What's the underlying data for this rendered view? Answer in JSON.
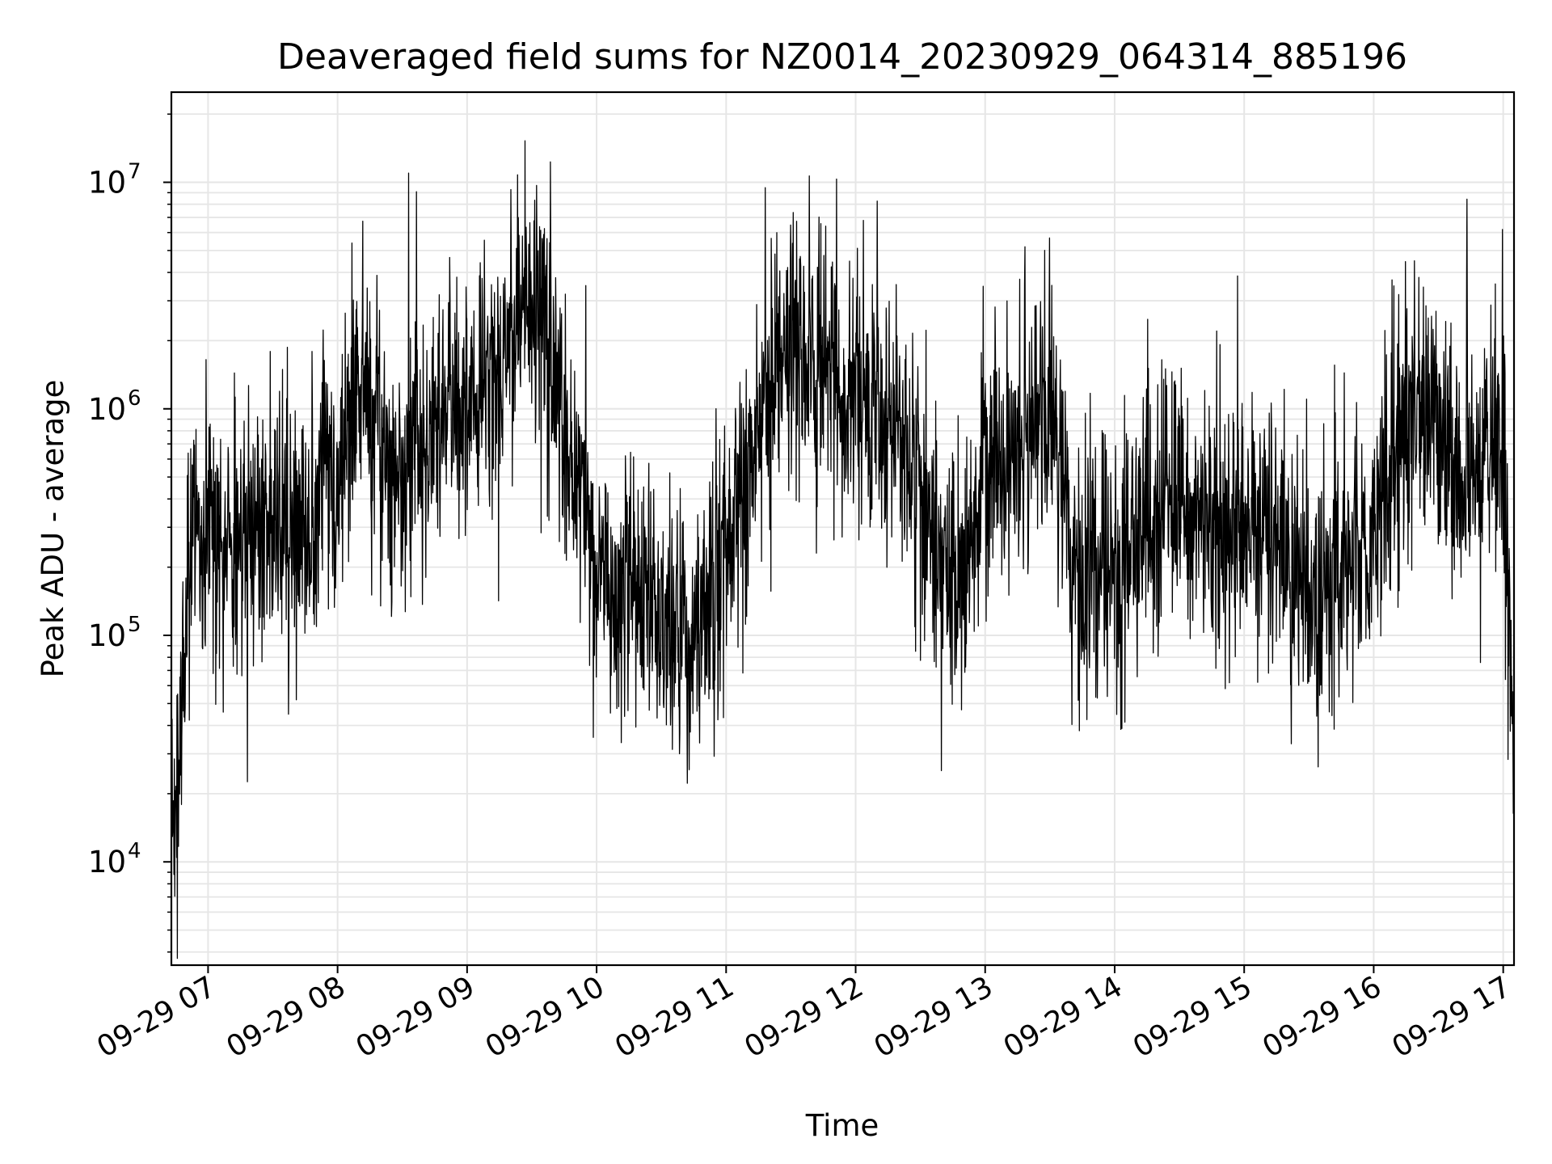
{
  "chart_data": {
    "type": "line",
    "title": "Deaveraged field sums for NZ0014_20230929_064314_885196",
    "xlabel": "Time",
    "ylabel": "Peak ADU - average",
    "yscale": "log",
    "ylim": [
      3500,
      25000000
    ],
    "xlim": [
      "2023-09-29 06:43",
      "2023-09-29 17:05"
    ],
    "grid": true,
    "line_color": "#000000",
    "grid_color": "#e6e6e6",
    "x_ticks": [
      "09-29 07",
      "09-29 08",
      "09-29 09",
      "09-29 10",
      "09-29 11",
      "09-29 12",
      "09-29 13",
      "09-29 14",
      "09-29 15",
      "09-29 16",
      "09-29 17"
    ],
    "x_tick_times": [
      "2023-09-29 07:00",
      "2023-09-29 08:00",
      "2023-09-29 09:00",
      "2023-09-29 10:00",
      "2023-09-29 11:00",
      "2023-09-29 12:00",
      "2023-09-29 13:00",
      "2023-09-29 14:00",
      "2023-09-29 15:00",
      "2023-09-29 16:00",
      "2023-09-29 17:00"
    ],
    "y_ticks": [
      {
        "value": 10000,
        "base": "10",
        "exp": "4"
      },
      {
        "value": 100000,
        "base": "10",
        "exp": "5"
      },
      {
        "value": 1000000,
        "base": "10",
        "exp": "6"
      },
      {
        "value": 10000000,
        "base": "10",
        "exp": "7"
      }
    ],
    "series": [
      {
        "x": [
          "2023-09-29 06:43",
          "2023-09-29 06:45",
          "2023-09-29 06:48",
          "2023-09-29 06:52",
          "2023-09-29 06:55",
          "2023-09-29 07:00",
          "2023-09-29 07:10",
          "2023-09-29 07:20",
          "2023-09-29 07:30",
          "2023-09-29 07:40",
          "2023-09-29 07:50",
          "2023-09-29 07:55",
          "2023-09-29 08:00",
          "2023-09-29 08:03",
          "2023-09-29 08:10",
          "2023-09-29 08:20",
          "2023-09-29 08:30",
          "2023-09-29 08:40",
          "2023-09-29 08:50",
          "2023-09-29 09:00",
          "2023-09-29 09:15",
          "2023-09-29 09:30",
          "2023-09-29 09:40",
          "2023-09-29 09:50",
          "2023-09-29 10:00",
          "2023-09-29 10:15",
          "2023-09-29 10:30",
          "2023-09-29 10:45",
          "2023-09-29 11:00",
          "2023-09-29 11:15",
          "2023-09-29 11:30",
          "2023-09-29 11:45",
          "2023-09-29 12:00",
          "2023-09-29 12:15",
          "2023-09-29 12:30",
          "2023-09-29 12:40",
          "2023-09-29 12:50",
          "2023-09-29 13:00",
          "2023-09-29 13:15",
          "2023-09-29 13:30",
          "2023-09-29 13:40",
          "2023-09-29 14:00",
          "2023-09-29 14:15",
          "2023-09-29 14:30",
          "2023-09-29 14:45",
          "2023-09-29 15:00",
          "2023-09-29 15:15",
          "2023-09-29 15:30",
          "2023-09-29 15:45",
          "2023-09-29 16:00",
          "2023-09-29 16:15",
          "2023-09-29 16:30",
          "2023-09-29 16:45",
          "2023-09-29 17:00",
          "2023-09-29 17:05"
        ],
        "y": [
          15000,
          14000,
          50000,
          300000,
          320000,
          280000,
          250000,
          300000,
          330000,
          300000,
          250000,
          900000,
          400000,
          900000,
          1200000,
          700000,
          500000,
          700000,
          900000,
          1000000,
          1300000,
          2800000,
          1300000,
          600000,
          200000,
          180000,
          140000,
          90000,
          260000,
          900000,
          2000000,
          1800000,
          1000000,
          850000,
          400000,
          150000,
          180000,
          500000,
          700000,
          1000000,
          200000,
          180000,
          300000,
          400000,
          260000,
          300000,
          250000,
          150000,
          200000,
          260000,
          1000000,
          800000,
          500000,
          700000,
          20000
        ],
        "jitter_sigma": 0.28
      }
    ]
  }
}
